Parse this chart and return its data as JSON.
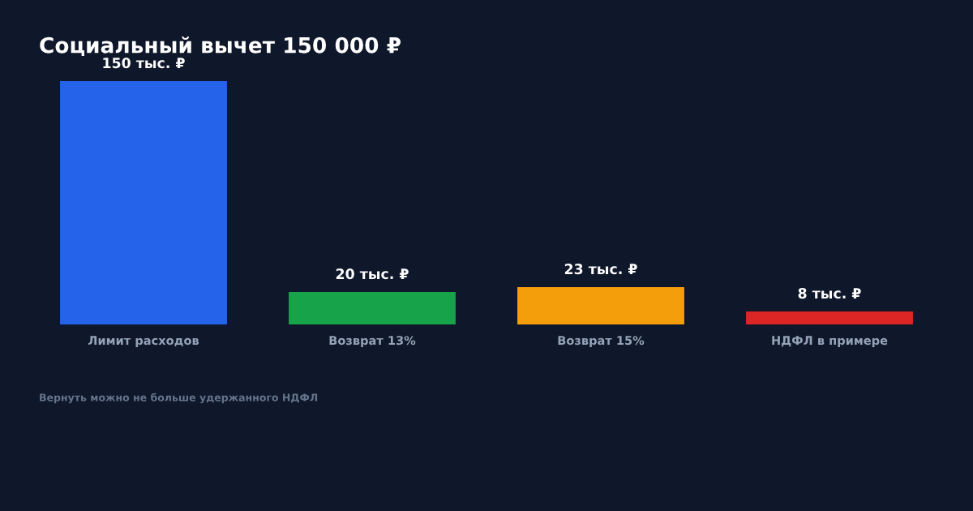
{
  "chart_data": {
    "type": "bar",
    "title": "Социальный вычет 150 000 ₽",
    "categories": [
      "Лимит расходов",
      "Возврат 13%",
      "Возврат 15%",
      "НДФЛ в примере"
    ],
    "values": [
      150,
      20,
      23,
      8
    ],
    "colors": [
      "#2563eb",
      "#16a34a",
      "#f59e0b",
      "#dc2626"
    ],
    "value_labels": [
      "150 тыс. ₽",
      "20 тыс. ₽",
      "23 тыс. ₽",
      "8 тыс. ₽"
    ],
    "tick_labels": "x",
    "annotations": [
      "Вернуть можно не больше удержанного НДФЛ"
    ]
  }
}
